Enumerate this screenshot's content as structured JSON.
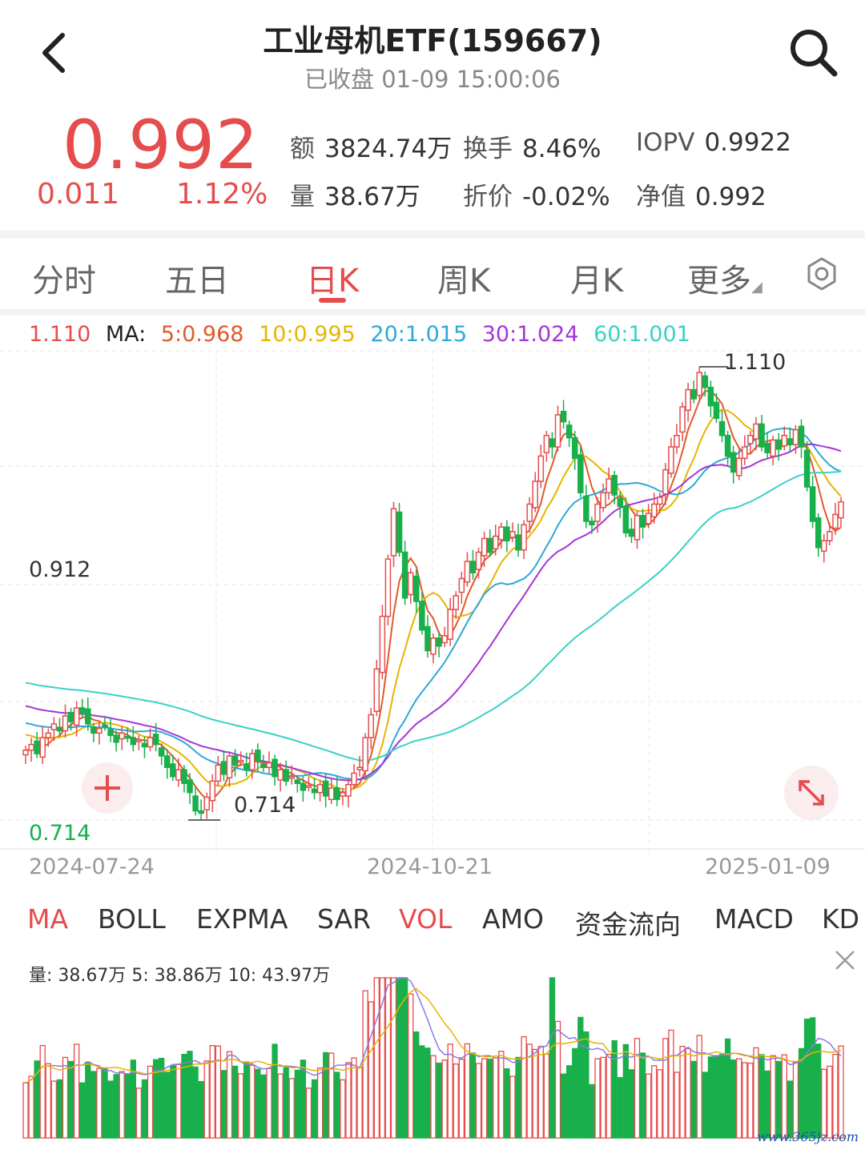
{
  "header": {
    "title": "工业母机ETF(159667)",
    "status": "已收盘 01-09 15:00:06"
  },
  "quote": {
    "price": "0.992",
    "change": "0.011",
    "change_pct": "1.12%",
    "stats": [
      {
        "label": "额",
        "value": "3824.74万"
      },
      {
        "label": "换手",
        "value": "8.46%"
      },
      {
        "label": "IOPV",
        "value": "0.9922"
      },
      {
        "label": "量",
        "value": "38.67万"
      },
      {
        "label": "折价",
        "value": "-0.02%"
      },
      {
        "label": "净值",
        "value": "0.992"
      }
    ]
  },
  "period_tabs": [
    "分时",
    "五日",
    "日K",
    "周K",
    "月K",
    "更多"
  ],
  "active_period": "日K",
  "ma_legend": {
    "high": "1.110",
    "label": "MA:",
    "items": [
      "5:0.968",
      "10:0.995",
      "20:1.015",
      "30:1.024",
      "60:1.001"
    ]
  },
  "colors": {
    "up": "#e54d4d",
    "down": "#18b04b",
    "ma5": "#e05a2a",
    "ma10": "#e8b400",
    "ma20": "#2fa8d8",
    "ma30": "#a535d6",
    "ma60": "#3cd0c8"
  },
  "price_axis": {
    "mid_label": "0.912",
    "low_label": "0.714"
  },
  "annotations": {
    "max": "1.110",
    "min": "0.714"
  },
  "date_axis": [
    "2024-07-24",
    "2024-10-21",
    "2025-01-09"
  ],
  "indicator_tabs": [
    "MA",
    "BOLL",
    "EXPMA",
    "SAR",
    "VOL",
    "AMO",
    "资金流向",
    "MACD",
    "KD"
  ],
  "active_indicators": [
    "MA",
    "VOL"
  ],
  "volume_legend": "量: 38.67万  5: 38.86万  10: 43.97万",
  "watermark": "www.365jz.com",
  "chart_data": {
    "type": "candlestick",
    "ylim": [
      0.714,
      1.11
    ],
    "closes": [
      0.775,
      0.78,
      0.772,
      0.786,
      0.79,
      0.798,
      0.792,
      0.805,
      0.8,
      0.812,
      0.808,
      0.798,
      0.79,
      0.794,
      0.796,
      0.788,
      0.782,
      0.79,
      0.786,
      0.78,
      0.784,
      0.778,
      0.786,
      0.78,
      0.77,
      0.76,
      0.752,
      0.758,
      0.746,
      0.738,
      0.722,
      0.72,
      0.734,
      0.748,
      0.762,
      0.754,
      0.77,
      0.762,
      0.766,
      0.758,
      0.772,
      0.766,
      0.76,
      0.764,
      0.752,
      0.758,
      0.748,
      0.752,
      0.746,
      0.74,
      0.744,
      0.738,
      0.745,
      0.735,
      0.742,
      0.732,
      0.738,
      0.745,
      0.755,
      0.76,
      0.786,
      0.806,
      0.846,
      0.892,
      0.942,
      0.986,
      0.948,
      0.908,
      0.93,
      0.905,
      0.88,
      0.862,
      0.873,
      0.866,
      0.875,
      0.898,
      0.91,
      0.925,
      0.94,
      0.93,
      0.948,
      0.96,
      0.948,
      0.962,
      0.97,
      0.958,
      0.966,
      0.95,
      0.972,
      0.99,
      1.01,
      1.032,
      1.05,
      1.04,
      1.068,
      1.062,
      1.048,
      1.03,
      1.0,
      0.975,
      0.972,
      0.99,
      1.0,
      1.012,
      0.998,
      0.988,
      0.965,
      0.962,
      0.98,
      0.97,
      0.982,
      0.99,
      0.996,
      1.02,
      1.04,
      1.05,
      1.075,
      1.09,
      1.082,
      1.105,
      1.092,
      1.076,
      1.065,
      1.05,
      1.032,
      1.018,
      1.03,
      1.04,
      1.05,
      1.06,
      1.04,
      1.035,
      1.046,
      1.038,
      1.05,
      1.042,
      1.055,
      1.04,
      1.005,
      0.975,
      0.952,
      0.958,
      0.966,
      0.981,
      0.992
    ],
    "ma_values": {
      "MA5": 0.968,
      "MA10": 0.995,
      "MA20": 1.015,
      "MA30": 1.024,
      "MA60": 1.001
    }
  }
}
